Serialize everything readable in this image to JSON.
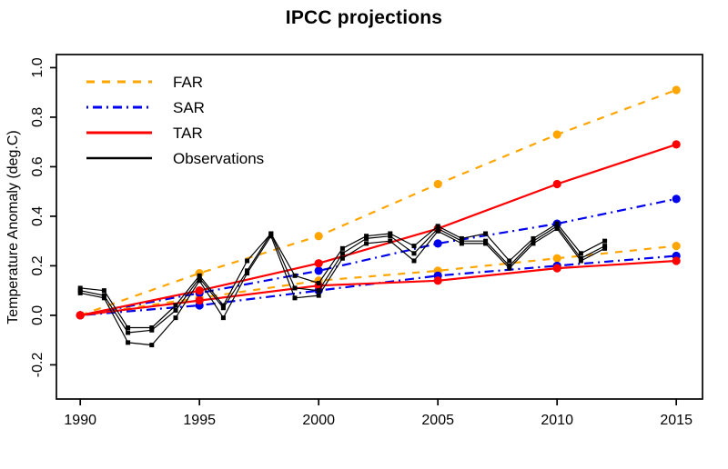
{
  "title": "IPCC projections",
  "ylabel": "Temperature Anomaly (deg.C)",
  "legend": {
    "entries": [
      {
        "id": "far",
        "label": "FAR",
        "color": "#FFA500",
        "dash": "9,8",
        "width": 3
      },
      {
        "id": "sar",
        "label": "SAR",
        "color": "#0000EE",
        "dash": "2,5,10,5",
        "width": 3
      },
      {
        "id": "tar",
        "label": "TAR",
        "color": "#FF0000",
        "dash": "",
        "width": 3
      },
      {
        "id": "observations",
        "label": "Observations",
        "color": "#000000",
        "dash": "",
        "width": 2.6
      }
    ]
  },
  "chart_data": {
    "type": "line",
    "title": "IPCC projections",
    "xlabel": "",
    "ylabel": "Temperature Anomaly (deg.C)",
    "xlim": [
      1989,
      2016.1
    ],
    "ylim": [
      -0.338,
      1.053
    ],
    "xticks": [
      1990,
      1995,
      2000,
      2005,
      2010,
      2015
    ],
    "xtick_labels": [
      "1990",
      "1995",
      "2000",
      "2005",
      "2010",
      "2015"
    ],
    "yticks": [
      -0.2,
      0,
      0.2,
      0.4,
      0.6,
      0.8,
      1.0
    ],
    "ytick_labels": [
      "-0.2",
      "0.0",
      "0.2",
      "0.4",
      "0.6",
      "0.8",
      "1.0"
    ],
    "grid": false,
    "legend_position": "top-left",
    "series": [
      {
        "name": "FAR upper",
        "color": "#FFA500",
        "dash": "8,8",
        "width": 2.2,
        "marker": "circle",
        "x": [
          1990,
          1995,
          2000,
          2005,
          2010,
          2015
        ],
        "values": [
          0.0,
          0.17,
          0.32,
          0.53,
          0.73,
          0.91
        ]
      },
      {
        "name": "FAR lower",
        "color": "#FFA500",
        "dash": "8,8",
        "width": 2.2,
        "marker": "circle",
        "x": [
          1990,
          1995,
          2000,
          2005,
          2010,
          2015
        ],
        "values": [
          0.0,
          0.07,
          0.14,
          0.18,
          0.23,
          0.28
        ]
      },
      {
        "name": "SAR upper",
        "color": "#0000EE",
        "dash": "2,5,10,5",
        "width": 2.2,
        "marker": "circle",
        "x": [
          1990,
          1995,
          2000,
          2005,
          2010,
          2015
        ],
        "values": [
          0.0,
          0.09,
          0.18,
          0.29,
          0.37,
          0.47
        ]
      },
      {
        "name": "SAR lower",
        "color": "#0000EE",
        "dash": "2,5,10,5",
        "width": 2.2,
        "marker": "circle",
        "x": [
          1990,
          1995,
          2000,
          2005,
          2010,
          2015
        ],
        "values": [
          0.0,
          0.04,
          0.1,
          0.16,
          0.2,
          0.24
        ]
      },
      {
        "name": "TAR upper",
        "color": "#FF0000",
        "dash": "",
        "width": 2.2,
        "marker": "circle",
        "x": [
          1990,
          1995,
          2000,
          2005,
          2010,
          2015
        ],
        "values": [
          0.0,
          0.1,
          0.21,
          0.35,
          0.53,
          0.69
        ]
      },
      {
        "name": "TAR lower",
        "color": "#FF0000",
        "dash": "",
        "width": 2.2,
        "marker": "circle",
        "x": [
          1990,
          1995,
          2000,
          2005,
          2010,
          2015
        ],
        "values": [
          0.0,
          0.06,
          0.12,
          0.14,
          0.19,
          0.22
        ]
      },
      {
        "name": "Observations 1",
        "color": "#000000",
        "dash": "",
        "width": 1.2,
        "marker": "square",
        "x": [
          1990,
          1991,
          1992,
          1993,
          1994,
          1995,
          1996,
          1997,
          1998,
          1999,
          2000,
          2001,
          2002,
          2003,
          2004,
          2005,
          2006,
          2007,
          2008,
          2009,
          2010,
          2011,
          2012
        ],
        "values": [
          0.11,
          0.1,
          -0.05,
          -0.05,
          0.04,
          0.16,
          0.04,
          0.22,
          0.33,
          0.16,
          0.13,
          0.27,
          0.32,
          0.33,
          0.28,
          0.36,
          0.31,
          0.33,
          0.22,
          0.31,
          0.37,
          0.25,
          0.3
        ]
      },
      {
        "name": "Observations 2",
        "color": "#000000",
        "dash": "",
        "width": 1.2,
        "marker": "square",
        "x": [
          1990,
          1991,
          1992,
          1993,
          1994,
          1995,
          1996,
          1997,
          1998,
          1999,
          2000,
          2001,
          2002,
          2003,
          2004,
          2005,
          2006,
          2007,
          2008,
          2009,
          2010,
          2011,
          2012
        ],
        "values": [
          0.1,
          0.08,
          -0.07,
          -0.06,
          0.02,
          0.15,
          0.03,
          0.18,
          0.33,
          0.11,
          0.1,
          0.25,
          0.31,
          0.32,
          0.25,
          0.35,
          0.3,
          0.3,
          0.2,
          0.3,
          0.36,
          0.23,
          0.28
        ]
      },
      {
        "name": "Observations 3",
        "color": "#000000",
        "dash": "",
        "width": 1.2,
        "marker": "square",
        "x": [
          1990,
          1991,
          1992,
          1993,
          1994,
          1995,
          1996,
          1997,
          1998,
          1999,
          2000,
          2001,
          2002,
          2003,
          2004,
          2005,
          2006,
          2007,
          2008,
          2009,
          2010,
          2011,
          2012
        ],
        "values": [
          0.09,
          0.07,
          -0.11,
          -0.12,
          -0.01,
          0.14,
          -0.01,
          0.17,
          0.32,
          0.07,
          0.08,
          0.23,
          0.29,
          0.3,
          0.22,
          0.34,
          0.29,
          0.29,
          0.19,
          0.29,
          0.35,
          0.22,
          0.27
        ]
      }
    ]
  }
}
